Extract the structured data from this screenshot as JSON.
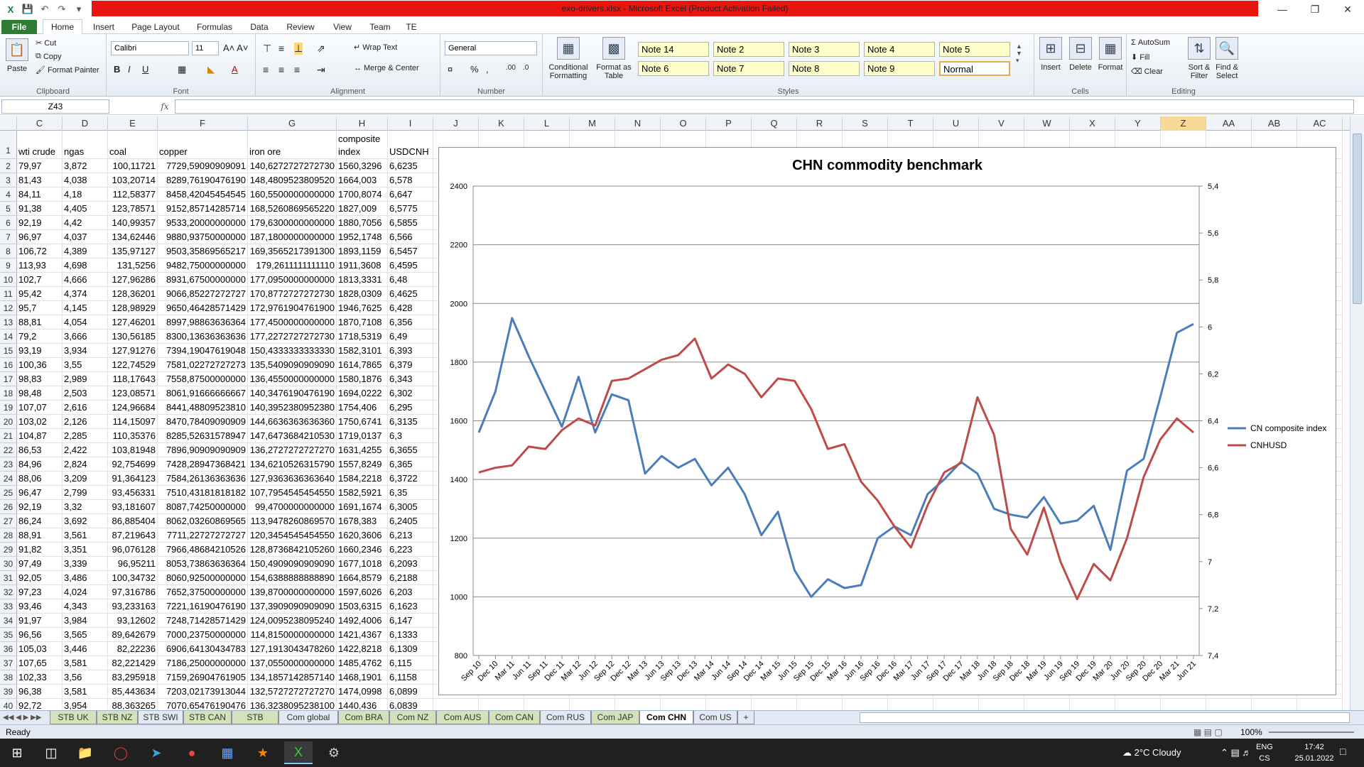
{
  "window": {
    "title": "exo-drivers.xlsx  -  Microsoft Excel (Product Activation Failed)"
  },
  "ribbon_tabs": [
    "File",
    "Home",
    "Insert",
    "Page Layout",
    "Formulas",
    "Data",
    "Review",
    "View",
    "Team",
    "TE"
  ],
  "clipboard": {
    "paste": "Paste",
    "cut": "Cut",
    "copy": "Copy",
    "format_painter": "Format Painter",
    "label": "Clipboard"
  },
  "font": {
    "name": "Calibri",
    "size": "11",
    "label": "Font"
  },
  "alignment": {
    "wrap": "Wrap Text",
    "merge": "Merge & Center",
    "label": "Alignment"
  },
  "number": {
    "format": "General",
    "label": "Number"
  },
  "styles": {
    "cond": "Conditional Formatting",
    "table": "Format as Table",
    "label": "Styles",
    "cells": [
      "Note 14",
      "Note 2",
      "Note 3",
      "Note 4",
      "Note 5",
      "Note 6",
      "Note 7",
      "Note 8",
      "Note 9",
      "Normal"
    ]
  },
  "cells_grp": {
    "insert": "Insert",
    "delete": "Delete",
    "format": "Format",
    "label": "Cells"
  },
  "editing": {
    "autosum": "AutoSum",
    "fill": "Fill",
    "clear": "Clear",
    "sort": "Sort & Filter",
    "find": "Find & Select",
    "label": "Editing"
  },
  "formula_bar": {
    "name_box": "Z43",
    "fx": "fx",
    "value": ""
  },
  "columns": [
    "C",
    "D",
    "E",
    "F",
    "G",
    "H",
    "I",
    "J",
    "K",
    "L",
    "M",
    "N",
    "O",
    "P",
    "Q",
    "R",
    "S",
    "T",
    "U",
    "V",
    "W",
    "X",
    "Y",
    "Z",
    "AA",
    "AB",
    "AC"
  ],
  "header_row": {
    "c": "wti crude",
    "d": "ngas",
    "e": "coal",
    "f": "copper",
    "g": "iron ore",
    "h1": "composite",
    "h2": "index",
    "i": "USDCNH"
  },
  "rows": [
    [
      "79,97",
      "3,872",
      "100,11721",
      "7729,59090909091",
      "140,6272727272730",
      "1560,3296",
      "6,6235"
    ],
    [
      "81,43",
      "4,038",
      "103,20714",
      "8289,76190476190",
      "148,4809523809520",
      "1664,003",
      "6,578"
    ],
    [
      "84,11",
      "4,18",
      "112,58377",
      "8458,42045454545",
      "160,5500000000000",
      "1700,8074",
      "6,647"
    ],
    [
      "91,38",
      "4,405",
      "123,78571",
      "9152,85714285714",
      "168,5260869565220",
      "1827,009",
      "6,5775"
    ],
    [
      "92,19",
      "4,42",
      "140,99357",
      "9533,20000000000",
      "179,6300000000000",
      "1880,7056",
      "6,5855"
    ],
    [
      "96,97",
      "4,037",
      "134,62446",
      "9880,93750000000",
      "187,1800000000000",
      "1952,1748",
      "6,566"
    ],
    [
      "106,72",
      "4,389",
      "135,97127",
      "9503,35869565217",
      "169,3565217391300",
      "1893,1159",
      "6,5457"
    ],
    [
      "113,93",
      "4,698",
      "131,5256",
      "9482,75000000000",
      "179,2611111111110",
      "1911,3608",
      "6,4595"
    ],
    [
      "102,7",
      "4,666",
      "127,96286",
      "8931,67500000000",
      "177,0950000000000",
      "1813,3331",
      "6,48"
    ],
    [
      "95,42",
      "4,374",
      "128,36201",
      "9066,85227272727",
      "170,8772727272730",
      "1828,0309",
      "6,4625"
    ],
    [
      "95,7",
      "4,145",
      "128,98929",
      "9650,46428571429",
      "172,9761904761900",
      "1946,7625",
      "6,428"
    ],
    [
      "88,81",
      "4,054",
      "127,46201",
      "8997,98863636364",
      "177,4500000000000",
      "1870,7108",
      "6,356"
    ],
    [
      "79,2",
      "3,666",
      "130,56185",
      "8300,13636363636",
      "177,2272727272730",
      "1718,5319",
      "6,49"
    ],
    [
      "93,19",
      "3,934",
      "127,91276",
      "7394,19047619048",
      "150,4333333333330",
      "1582,3101",
      "6,393"
    ],
    [
      "100,36",
      "3,55",
      "122,74529",
      "7581,02272727273",
      "135,5409090909090",
      "1614,7865",
      "6,379"
    ],
    [
      "98,83",
      "2,989",
      "118,17643",
      "7558,87500000000",
      "136,4550000000000",
      "1580,1876",
      "6,343"
    ],
    [
      "98,48",
      "2,503",
      "123,08571",
      "8061,91666666667",
      "140,3476190476190",
      "1694,0222",
      "6,302"
    ],
    [
      "107,07",
      "2,616",
      "124,96684",
      "8441,48809523810",
      "140,3952380952380",
      "1754,406",
      "6,295"
    ],
    [
      "103,02",
      "2,126",
      "114,15097",
      "8470,78409090909",
      "144,6636363636360",
      "1750,6741",
      "6,3135"
    ],
    [
      "104,87",
      "2,285",
      "110,35376",
      "8285,52631578947",
      "147,6473684210530",
      "1719,0137",
      "6,3"
    ],
    [
      "86,53",
      "2,422",
      "103,81948",
      "7896,90909090909",
      "136,2727272727270",
      "1631,4255",
      "6,3655"
    ],
    [
      "84,96",
      "2,824",
      "92,754699",
      "7428,28947368421",
      "134,6210526315790",
      "1557,8249",
      "6,365"
    ],
    [
      "88,06",
      "3,209",
      "91,364123",
      "7584,26136363636",
      "127,9363636363640",
      "1584,2218",
      "6,3722"
    ],
    [
      "96,47",
      "2,799",
      "93,456331",
      "7510,43181818182",
      "107,7954545454550",
      "1582,5921",
      "6,35"
    ],
    [
      "92,19",
      "3,32",
      "93,181607",
      "8087,74250000000",
      "99,4700000000000",
      "1691,1674",
      "6,3005"
    ],
    [
      "86,24",
      "3,692",
      "86,885404",
      "8062,03260869565",
      "113,9478260869570",
      "1678,383",
      "6,2405"
    ],
    [
      "88,91",
      "3,561",
      "87,219643",
      "7711,22727272727",
      "120,3454545454550",
      "1620,3606",
      "6,213"
    ],
    [
      "91,82",
      "3,351",
      "96,076128",
      "7966,48684210526",
      "128,8736842105260",
      "1660,2346",
      "6,223"
    ],
    [
      "97,49",
      "3,339",
      "96,95211",
      "8053,73863636364",
      "150,4909090909090",
      "1677,1018",
      "6,2093"
    ],
    [
      "92,05",
      "3,486",
      "100,34732",
      "8060,92500000000",
      "154,6388888888890",
      "1664,8579",
      "6,2188"
    ],
    [
      "97,23",
      "4,024",
      "97,316786",
      "7652,37500000000",
      "139,8700000000000",
      "1597,6026",
      "6,203"
    ],
    [
      "93,46",
      "4,343",
      "93,233163",
      "7221,16190476190",
      "137,3909090909090",
      "1503,6315",
      "6,1623"
    ],
    [
      "91,97",
      "3,984",
      "93,12602",
      "7248,71428571429",
      "124,0095238095240",
      "1492,4006",
      "6,147"
    ],
    [
      "96,56",
      "3,565",
      "89,642679",
      "7000,23750000000",
      "114,8150000000000",
      "1421,4367",
      "6,1333"
    ],
    [
      "105,03",
      "3,446",
      "82,22236",
      "6906,64130434783",
      "127,1913043478260",
      "1422,8218",
      "6,1309"
    ],
    [
      "107,65",
      "3,581",
      "82,221429",
      "7186,25000000000",
      "137,0550000000000",
      "1485,4762",
      "6,115"
    ],
    [
      "102,33",
      "3,56",
      "83,295918",
      "7159,26904761905",
      "134,1857142857140",
      "1468,1901",
      "6,1158"
    ],
    [
      "96,38",
      "3,581",
      "85,443634",
      "7203,02173913044",
      "132,5727272727270",
      "1474,0998",
      "6,0899"
    ],
    [
      "92,72",
      "3,954",
      "88,363265",
      "7070,65476190476",
      "136,3238095238100",
      "1440,436",
      "6,0839"
    ]
  ],
  "chart_data": {
    "type": "line",
    "title": "CHN commodity benchmark",
    "x": [
      "Sep 10",
      "Dec 10",
      "Mar 11",
      "Jun 11",
      "Sep 11",
      "Dec 11",
      "Mar 12",
      "Jun 12",
      "Sep 12",
      "Dec 12",
      "Mar 13",
      "Jun 13",
      "Sep 13",
      "Dec 13",
      "Mar 14",
      "Jun 14",
      "Sep 14",
      "Dec 14",
      "Mar 15",
      "Jun 15",
      "Sep 15",
      "Dec 15",
      "Mar 16",
      "Jun 16",
      "Sep 16",
      "Dec 16",
      "Mar 17",
      "Jun 17",
      "Sep 17",
      "Dec 17",
      "Mar 18",
      "Jun 18",
      "Sep 18",
      "Dec 18",
      "Mar 19",
      "Jun 19",
      "Sep 19",
      "Dec 19",
      "Mar 20",
      "Jun 20",
      "Sep 20",
      "Dec 20",
      "Mar 21",
      "Jun 21"
    ],
    "y_left": {
      "min": 800,
      "max": 2400,
      "ticks": [
        "800",
        "1000",
        "1200",
        "1400",
        "1600",
        "1800",
        "2000",
        "2200",
        "2400"
      ]
    },
    "y_right": {
      "min": 5.4,
      "max": 7.4,
      "reversed": true,
      "ticks": [
        "5,4",
        "5,6",
        "5,8",
        "6",
        "6,2",
        "6,4",
        "6,6",
        "6,8",
        "7",
        "7,2",
        "7,4"
      ]
    },
    "legend_position": "right",
    "series": [
      {
        "name": "CN composite index",
        "axis": "left",
        "color": "#4a7ebb",
        "values": [
          1560,
          1700,
          1950,
          1820,
          1700,
          1580,
          1750,
          1560,
          1690,
          1670,
          1420,
          1480,
          1440,
          1470,
          1380,
          1440,
          1350,
          1210,
          1290,
          1090,
          1000,
          1060,
          1030,
          1040,
          1200,
          1240,
          1210,
          1350,
          1400,
          1460,
          1420,
          1300,
          1280,
          1270,
          1340,
          1250,
          1260,
          1310,
          1160,
          1430,
          1470,
          1680,
          1900,
          1930
        ]
      },
      {
        "name": "CNHUSD",
        "axis": "right",
        "color": "#be4b48",
        "values": [
          6.62,
          6.6,
          6.59,
          6.51,
          6.52,
          6.44,
          6.39,
          6.42,
          6.23,
          6.22,
          6.18,
          6.14,
          6.12,
          6.05,
          6.22,
          6.16,
          6.2,
          6.3,
          6.22,
          6.23,
          6.35,
          6.52,
          6.5,
          6.66,
          6.74,
          6.85,
          6.94,
          6.76,
          6.62,
          6.58,
          6.3,
          6.46,
          6.86,
          6.97,
          6.77,
          7.0,
          7.16,
          7.01,
          7.08,
          6.9,
          6.64,
          6.48,
          6.39,
          6.45
        ]
      }
    ]
  },
  "sheet_tabs": [
    {
      "name": "STB UK",
      "style": "green"
    },
    {
      "name": "STB NZ",
      "style": "green"
    },
    {
      "name": "STB SWI",
      "style": "plain"
    },
    {
      "name": "STB CAN",
      "style": "green"
    },
    {
      "name": "STB HUN",
      "style": "green"
    },
    {
      "name": "Com global",
      "style": "plain"
    },
    {
      "name": "Com BRA",
      "style": "green"
    },
    {
      "name": "Com NZ",
      "style": "green"
    },
    {
      "name": "Com AUS",
      "style": "green"
    },
    {
      "name": "Com CAN",
      "style": "green"
    },
    {
      "name": "Com RUS",
      "style": "plain"
    },
    {
      "name": "Com JAP",
      "style": "green"
    },
    {
      "name": "Com CHN",
      "style": "active"
    },
    {
      "name": "Com US",
      "style": "plain"
    }
  ],
  "status": {
    "ready": "Ready",
    "zoom": "100%"
  },
  "taskbar": {
    "weather": "2°C  Cloudy",
    "lang1": "ENG",
    "lang2": "CS",
    "time": "17:42",
    "date": "25.01.2022"
  }
}
